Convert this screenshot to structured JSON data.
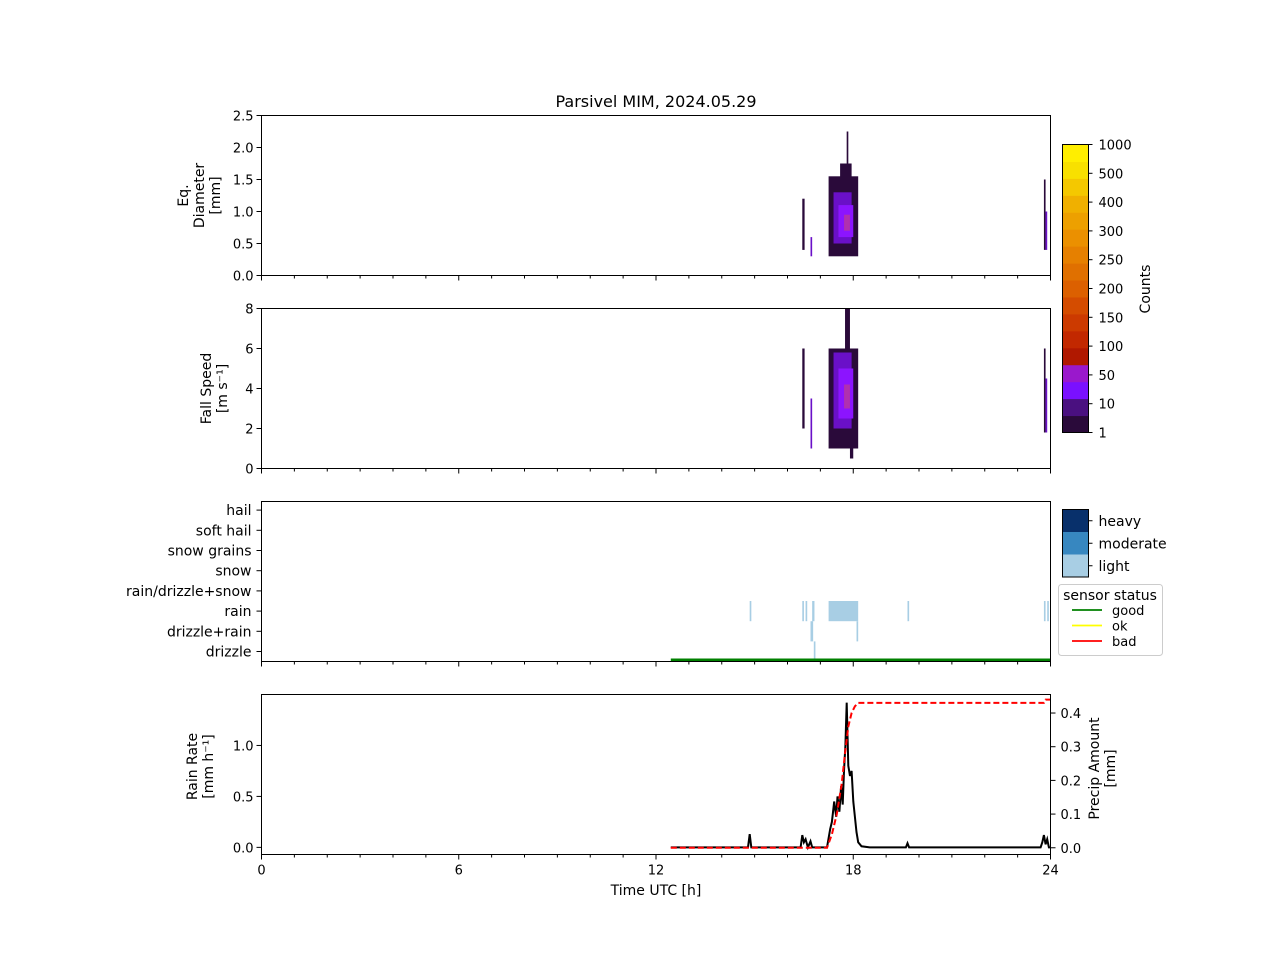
{
  "title": "Parsivel MIM, 2024.05.29",
  "colorbar": {
    "label": "Counts",
    "tick_labels": [
      "1",
      "10",
      "50",
      "100",
      "150",
      "200",
      "250",
      "300",
      "400",
      "500",
      "1000"
    ],
    "colors": [
      "#2a0a3a",
      "#4a1080",
      "#7a10ff",
      "#9a18cc",
      "#b01800",
      "#c22800",
      "#cc3a00",
      "#d44c00",
      "#dc6000",
      "#e07000",
      "#e68000",
      "#eb9000",
      "#eda000",
      "#f0b000",
      "#f4c800",
      "#f8e000",
      "#ffee00"
    ]
  },
  "category_legend": {
    "items": [
      {
        "label": "heavy",
        "color": "#08306b"
      },
      {
        "label": "moderate",
        "color": "#3787c0"
      },
      {
        "label": "light",
        "color": "#a8cee4"
      }
    ]
  },
  "status_legend": {
    "title": "sensor status",
    "items": [
      {
        "label": "good",
        "color": "#008000"
      },
      {
        "label": "ok",
        "color": "#ffff00"
      },
      {
        "label": "bad",
        "color": "#ff0000"
      }
    ]
  },
  "chart_data": [
    {
      "type": "heatmap",
      "name": "diameter",
      "ylabel": [
        "Eq.",
        "Diameter",
        "[mm]"
      ],
      "xlim": [
        0,
        24
      ],
      "ylim": [
        0,
        2.5
      ],
      "yticks": [
        "0.0",
        "0.5",
        "1.0",
        "1.5",
        "2.0",
        "2.5"
      ],
      "ytick_values": [
        0,
        0.5,
        1.0,
        1.5,
        2.0,
        2.5
      ],
      "cells": [
        {
          "t0": 16.45,
          "t1": 16.52,
          "y0": 0.4,
          "y1": 1.2,
          "level": 0
        },
        {
          "t0": 16.7,
          "t1": 16.75,
          "y0": 0.3,
          "y1": 0.6,
          "level": 1
        },
        {
          "t0": 17.25,
          "t1": 18.15,
          "y0": 0.3,
          "y1": 1.55,
          "level": 0
        },
        {
          "t0": 17.4,
          "t1": 17.95,
          "y0": 0.5,
          "y1": 1.3,
          "level": 1
        },
        {
          "t0": 17.55,
          "t1": 18.0,
          "y0": 0.6,
          "y1": 1.1,
          "level": 2
        },
        {
          "t0": 17.72,
          "t1": 17.9,
          "y0": 0.7,
          "y1": 0.95,
          "level": 3
        },
        {
          "t0": 17.6,
          "t1": 17.95,
          "y0": 1.5,
          "y1": 1.75,
          "level": 0
        },
        {
          "t0": 17.8,
          "t1": 17.85,
          "y0": 1.75,
          "y1": 2.25,
          "level": 0
        },
        {
          "t0": 23.8,
          "t1": 23.85,
          "y0": 0.4,
          "y1": 1.5,
          "level": 0
        },
        {
          "t0": 23.85,
          "t1": 23.9,
          "y0": 0.4,
          "y1": 1.0,
          "level": 1
        }
      ]
    },
    {
      "type": "heatmap",
      "name": "fall_speed",
      "ylabel": [
        "Fall Speed",
        "[m s⁻¹]"
      ],
      "xlim": [
        0,
        24
      ],
      "ylim": [
        0,
        8
      ],
      "yticks": [
        "0",
        "2",
        "4",
        "6",
        "8"
      ],
      "ytick_values": [
        0,
        2,
        4,
        6,
        8
      ],
      "cells": [
        {
          "t0": 16.45,
          "t1": 16.52,
          "y0": 2.0,
          "y1": 6.0,
          "level": 0
        },
        {
          "t0": 16.7,
          "t1": 16.75,
          "y0": 1.0,
          "y1": 3.5,
          "level": 1
        },
        {
          "t0": 17.25,
          "t1": 18.15,
          "y0": 1.0,
          "y1": 6.0,
          "level": 0
        },
        {
          "t0": 17.4,
          "t1": 17.95,
          "y0": 2.0,
          "y1": 5.8,
          "level": 1
        },
        {
          "t0": 17.55,
          "t1": 18.0,
          "y0": 2.5,
          "y1": 5.0,
          "level": 2
        },
        {
          "t0": 17.72,
          "t1": 17.9,
          "y0": 3.0,
          "y1": 4.2,
          "level": 3
        },
        {
          "t0": 17.75,
          "t1": 17.9,
          "y0": 6.0,
          "y1": 8.0,
          "level": 0
        },
        {
          "t0": 17.9,
          "t1": 18.0,
          "y0": 0.5,
          "y1": 1.0,
          "level": 0
        },
        {
          "t0": 23.8,
          "t1": 23.85,
          "y0": 1.8,
          "y1": 6.0,
          "level": 0
        },
        {
          "t0": 23.85,
          "t1": 23.9,
          "y0": 1.8,
          "y1": 4.5,
          "level": 1
        }
      ]
    },
    {
      "type": "heatmap",
      "name": "precip_type",
      "xlim": [
        0,
        24
      ],
      "categories": [
        "drizzle",
        "drizzle+rain",
        "rain",
        "rain/drizzle+snow",
        "snow",
        "snow grains",
        "soft hail",
        "hail"
      ],
      "bars": [
        {
          "t0": 14.85,
          "t1": 14.9,
          "category": "rain",
          "intensity": "light"
        },
        {
          "t0": 16.45,
          "t1": 16.5,
          "category": "rain",
          "intensity": "light"
        },
        {
          "t0": 16.55,
          "t1": 16.6,
          "category": "rain",
          "intensity": "light"
        },
        {
          "t0": 16.75,
          "t1": 16.82,
          "category": "rain",
          "intensity": "light"
        },
        {
          "t0": 17.25,
          "t1": 18.15,
          "category": "rain",
          "intensity": "light"
        },
        {
          "t0": 19.65,
          "t1": 19.7,
          "category": "rain",
          "intensity": "light"
        },
        {
          "t0": 23.8,
          "t1": 23.85,
          "category": "rain",
          "intensity": "light"
        },
        {
          "t0": 23.9,
          "t1": 23.95,
          "category": "rain",
          "intensity": "light"
        },
        {
          "t0": 16.7,
          "t1": 16.78,
          "category": "drizzle+rain",
          "intensity": "light"
        },
        {
          "t0": 18.1,
          "t1": 18.15,
          "category": "drizzle+rain",
          "intensity": "light"
        },
        {
          "t0": 16.8,
          "t1": 16.85,
          "category": "drizzle",
          "intensity": "light"
        }
      ],
      "status_line": {
        "t0": 12.45,
        "t1": 24,
        "status": "good"
      }
    },
    {
      "type": "line",
      "name": "rain_rate",
      "xlabel": "Time UTC [h]",
      "ylabel": [
        "Rain Rate",
        "[mm h⁻¹]"
      ],
      "ylabel_right": [
        "Precip Amount",
        "[mm]"
      ],
      "xlim": [
        0,
        24
      ],
      "ylim": [
        -0.07,
        1.5
      ],
      "ylim_right": [
        -0.02,
        0.455
      ],
      "xticks": [
        "0",
        "6",
        "12",
        "18",
        "24"
      ],
      "xtick_values": [
        0,
        6,
        12,
        18,
        24
      ],
      "yticks": [
        "0.0",
        "0.5",
        "1.0"
      ],
      "ytick_values": [
        0,
        0.5,
        1.0
      ],
      "yticks_right": [
        "0.0",
        "0.1",
        "0.2",
        "0.3",
        "0.4"
      ],
      "ytick_values_right": [
        0,
        0.1,
        0.2,
        0.3,
        0.4
      ],
      "series": [
        {
          "axis": "left",
          "color": "#000000",
          "dashed": false,
          "x": [
            12.45,
            14.8,
            14.85,
            14.9,
            16.4,
            16.45,
            16.5,
            16.55,
            16.62,
            16.7,
            16.75,
            16.8,
            17.2,
            17.3,
            17.35,
            17.42,
            17.48,
            17.52,
            17.58,
            17.63,
            17.68,
            17.72,
            17.76,
            17.8,
            17.85,
            17.9,
            17.95,
            18.0,
            18.05,
            18.1,
            18.15,
            18.25,
            18.5,
            19.6,
            19.65,
            19.7,
            23.7,
            23.75,
            23.8,
            23.85,
            23.9,
            23.95,
            24.0
          ],
          "y": [
            0.0,
            0.0,
            0.13,
            0.0,
            0.0,
            0.12,
            0.05,
            0.08,
            0.0,
            0.06,
            0.0,
            0.0,
            0.0,
            0.18,
            0.25,
            0.45,
            0.3,
            0.5,
            0.35,
            0.6,
            0.42,
            0.75,
            1.0,
            1.42,
            0.8,
            0.7,
            0.75,
            0.45,
            0.3,
            0.15,
            0.05,
            0.01,
            0.0,
            0.0,
            0.04,
            0.0,
            0.0,
            0.05,
            0.12,
            0.03,
            0.08,
            0.0,
            0.0
          ]
        },
        {
          "axis": "right",
          "color": "#ff0000",
          "dashed": true,
          "x": [
            12.45,
            17.2,
            17.35,
            17.5,
            17.65,
            17.75,
            17.85,
            17.95,
            18.05,
            18.15,
            23.8,
            23.85,
            24.0
          ],
          "y": [
            0.0,
            0.0,
            0.04,
            0.1,
            0.19,
            0.28,
            0.36,
            0.4,
            0.42,
            0.43,
            0.43,
            0.44,
            0.44
          ]
        }
      ]
    }
  ]
}
